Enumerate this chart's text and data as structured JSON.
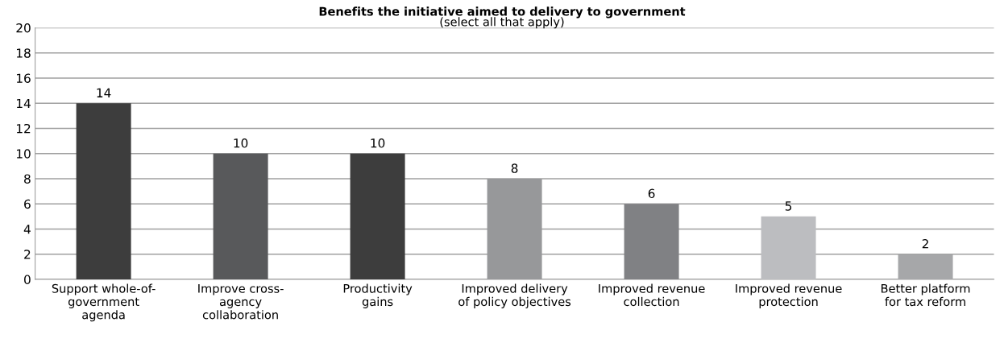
{
  "chart_data": {
    "type": "bar",
    "title": "Benefits the initiative aimed to delivery to government",
    "subtitle": "(select all that apply)",
    "categories": [
      "Support whole-of-\ngovernment\nagenda",
      "Improve cross-\nagency\ncollaboration",
      "Productivity\ngains",
      "Improved delivery\nof policy objectives",
      "Improved revenue\ncollection",
      "Improved revenue\nprotection",
      "Better platform\nfor tax reform"
    ],
    "values": [
      14,
      10,
      10,
      8,
      6,
      5,
      2
    ],
    "colors": [
      "#3d3d3d",
      "#58595b",
      "#3d3d3d",
      "#97989a",
      "#808184",
      "#bcbdc0",
      "#a6a7a9"
    ],
    "ylim": [
      0,
      20
    ],
    "yticks": [
      0,
      2,
      4,
      6,
      8,
      10,
      12,
      14,
      16,
      18,
      20
    ],
    "grid": "y",
    "data_labels": true,
    "legend": false
  }
}
